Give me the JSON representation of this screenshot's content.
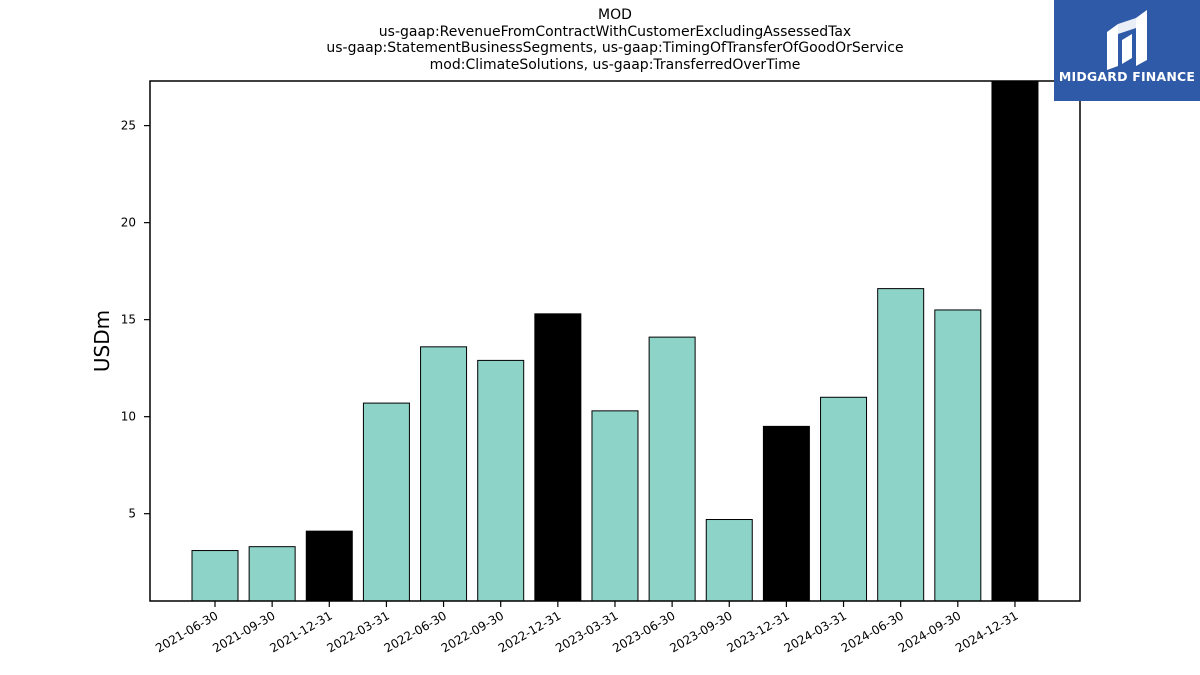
{
  "chart_data": {
    "type": "bar",
    "title_lines": [
      "MOD",
      "us-gaap:RevenueFromContractWithCustomerExcludingAssessedTax",
      "us-gaap:StatementBusinessSegments, us-gaap:TimingOfTransferOfGoodOrService",
      "mod:ClimateSolutions, us-gaap:TransferredOverTime"
    ],
    "ylabel": "USDm",
    "xlabel": "",
    "categories": [
      "2021-06-30",
      "2021-09-30",
      "2021-12-31",
      "2022-03-31",
      "2022-06-30",
      "2022-09-30",
      "2022-12-31",
      "2023-03-31",
      "2023-06-30",
      "2023-09-30",
      "2023-12-31",
      "2024-03-31",
      "2024-06-30",
      "2024-09-30",
      "2024-12-31"
    ],
    "values": [
      3.1,
      3.3,
      4.1,
      10.7,
      13.6,
      12.9,
      15.3,
      10.3,
      14.1,
      4.7,
      9.5,
      11.0,
      16.6,
      15.5,
      27.3
    ],
    "fiscal_year_end": [
      false,
      false,
      true,
      false,
      false,
      false,
      true,
      false,
      false,
      false,
      true,
      false,
      false,
      false,
      true
    ],
    "ylim": [
      0.5,
      27.3
    ],
    "yticks": [
      5,
      10,
      15,
      20,
      25
    ],
    "grid": false,
    "colors": {
      "quarter_bar": "#8dd3c7",
      "year_end_bar": "#000000",
      "bar_edge": "#000000",
      "axis": "#000000"
    }
  },
  "logo": {
    "text": "MIDGARD FINANCE",
    "background": "#2f5aa8",
    "icon": "midgard-logo-icon"
  }
}
